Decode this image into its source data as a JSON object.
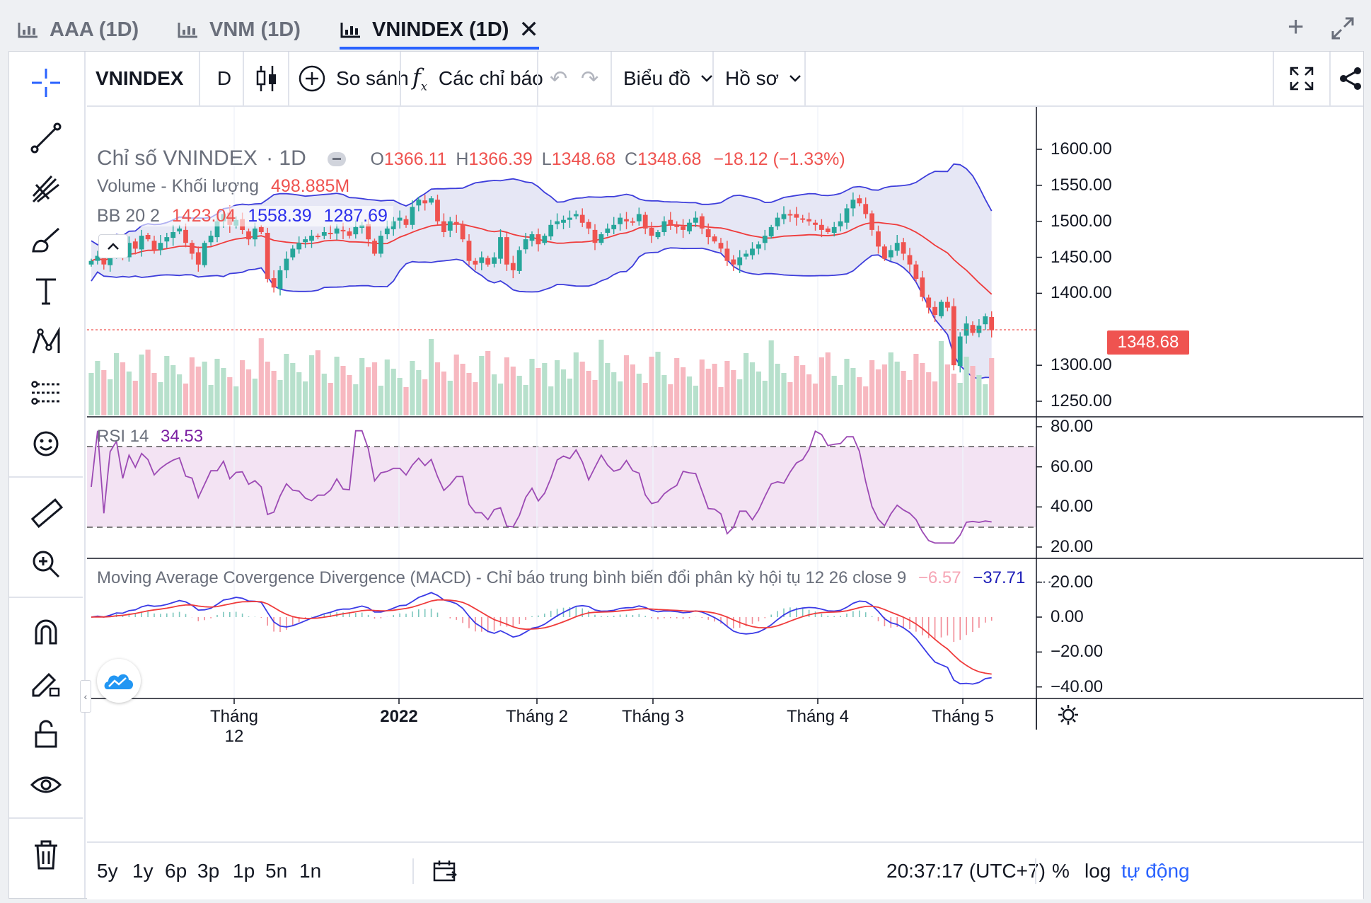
{
  "tabs": [
    {
      "label": "AAA (1D)",
      "active": false
    },
    {
      "label": "VNM (1D)",
      "active": false
    },
    {
      "label": "VNINDEX (1D)",
      "active": true
    }
  ],
  "tab_actions": {
    "add": "+",
    "expand": "expand-icon"
  },
  "toolbar": {
    "symbol": "VNINDEX",
    "interval": "D",
    "compare": "So sánh",
    "indicators": "Các chỉ báo",
    "chart_menu": "Biểu đồ",
    "profile_menu": "Hồ sơ"
  },
  "legend": {
    "title": "Chỉ số VNINDEX",
    "interval": "1D",
    "o_label": "O",
    "o_val": "1366.11",
    "h_label": "H",
    "h_val": "1366.39",
    "l_label": "L",
    "l_val": "1348.68",
    "c_label": "C",
    "c_val": "1348.68",
    "change": "−18.12 (−1.33%)",
    "volume_label": "Volume - Khối lượng",
    "volume_val": "498.885M",
    "bb_label": "BB 20 2",
    "bb_mid": "1423.04",
    "bb_up": "1558.39",
    "bb_low": "1287.69",
    "rsi_label": "RSI 14",
    "rsi_val": "34.53",
    "macd_label": "Moving Average Covergence Divergence (MACD) - Chỉ báo trung bình biến đổi phân kỳ hội tụ 12 26 close 9",
    "macd_hist": "−6.57",
    "macd_val": "−37.71",
    "macd_more": "…"
  },
  "price_axis": [
    "1600.00",
    "1550.00",
    "1500.00",
    "1450.00",
    "1400.00",
    "1350.00",
    "1300.00",
    "1250.00"
  ],
  "last_price": "1348.68",
  "rsi_axis": [
    "80.00",
    "60.00",
    "40.00",
    "20.00"
  ],
  "macd_axis": [
    "20.00",
    "0.00",
    "−20.00",
    "−40.00"
  ],
  "time_axis": [
    {
      "label": "Tháng 12",
      "bold": false
    },
    {
      "label": "2022",
      "bold": true
    },
    {
      "label": "Tháng 2",
      "bold": false
    },
    {
      "label": "Tháng 3",
      "bold": false
    },
    {
      "label": "Tháng 4",
      "bold": false
    },
    {
      "label": "Tháng 5",
      "bold": false
    }
  ],
  "ranges": [
    "5y",
    "1y",
    "6p",
    "3p",
    "1p",
    "5n",
    "1n"
  ],
  "clock": "20:37:17 (UTC+7)",
  "scale_opts": {
    "percent": "%",
    "log": "log",
    "auto": "tự động"
  },
  "colors": {
    "up": "#26a69a",
    "down": "#ef5350",
    "bb_band": "#e6e7f5",
    "bb_line": "#3d3ddb",
    "rsi_band": "#f3e3f3",
    "rsi_line": "#9c4ab4",
    "macd_line": "#3a3ae6",
    "signal_line": "#ef3b3b",
    "accent": "#2962ff"
  },
  "chart_data": {
    "type": "candlestick",
    "closes": [
      1445,
      1452,
      1440,
      1458,
      1465,
      1450,
      1470,
      1462,
      1480,
      1475,
      1460,
      1470,
      1478,
      1485,
      1490,
      1470,
      1455,
      1440,
      1470,
      1480,
      1500,
      1510,
      1495,
      1502,
      1488,
      1475,
      1490,
      1485,
      1420,
      1408,
      1432,
      1448,
      1462,
      1470,
      1475,
      1480,
      1478,
      1485,
      1482,
      1490,
      1486,
      1480,
      1492,
      1495,
      1475,
      1455,
      1480,
      1490,
      1500,
      1505,
      1495,
      1520,
      1530,
      1525,
      1532,
      1500,
      1485,
      1500,
      1495,
      1475,
      1445,
      1440,
      1450,
      1440,
      1450,
      1478,
      1440,
      1432,
      1460,
      1475,
      1482,
      1468,
      1480,
      1495,
      1500,
      1502,
      1505,
      1510,
      1498,
      1490,
      1470,
      1482,
      1490,
      1495,
      1505,
      1500,
      1498,
      1510,
      1490,
      1480,
      1485,
      1500,
      1495,
      1492,
      1488,
      1498,
      1505,
      1490,
      1478,
      1472,
      1462,
      1445,
      1440,
      1450,
      1455,
      1462,
      1468,
      1480,
      1492,
      1505,
      1510,
      1508,
      1505,
      1502,
      1500,
      1495,
      1488,
      1485,
      1492,
      1500,
      1518,
      1530,
      1525,
      1510,
      1488,
      1465,
      1448,
      1460,
      1470,
      1455,
      1440,
      1420,
      1395,
      1380,
      1370,
      1388,
      1380,
      1300,
      1340,
      1358,
      1345,
      1355,
      1368,
      1348.68
    ],
    "volume": [
      "series of green/red bars"
    ],
    "rsi_upper": 70,
    "rsi_lower": 30
  }
}
